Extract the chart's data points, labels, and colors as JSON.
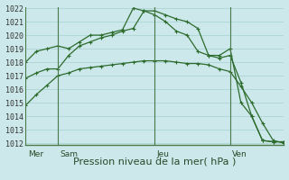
{
  "bg_color": "#cce8ea",
  "grid_color": "#aed4d6",
  "line_color": "#2d6b2d",
  "marker_color": "#2d6b2d",
  "xlabel": "Pression niveau de la mer( hPa )",
  "xlabel_fontsize": 8,
  "ymin": 1012,
  "ymax": 1022,
  "ytick_fontsize": 6,
  "day_labels": [
    "Mer",
    "Sam",
    "Jeu",
    "Ven"
  ],
  "day_positions": [
    0,
    3,
    12,
    19
  ],
  "vline_color": "#4a7a4a",
  "xmax": 24,
  "series1_x": [
    0,
    1,
    2,
    3,
    4,
    5,
    6,
    7,
    8,
    9,
    10,
    11,
    12,
    13,
    14,
    15,
    16,
    17,
    18,
    19,
    20,
    21,
    22,
    23,
    24
  ],
  "series1_y": [
    1014.8,
    1015.6,
    1016.3,
    1017.0,
    1017.2,
    1017.5,
    1017.6,
    1017.7,
    1017.8,
    1017.9,
    1018.0,
    1018.1,
    1018.1,
    1018.1,
    1018.0,
    1017.9,
    1017.9,
    1017.8,
    1017.5,
    1017.3,
    1016.2,
    1015.0,
    1013.5,
    1012.2,
    1012.0
  ],
  "series2_x": [
    0,
    1,
    2,
    3,
    4,
    5,
    6,
    7,
    8,
    9,
    10,
    11,
    12,
    13,
    14,
    15,
    16,
    17,
    18,
    19,
    20,
    21,
    22,
    23,
    24
  ],
  "series2_y": [
    1016.8,
    1017.2,
    1017.5,
    1017.5,
    1018.5,
    1019.2,
    1019.5,
    1019.8,
    1020.0,
    1020.3,
    1020.5,
    1021.8,
    1021.8,
    1021.5,
    1021.2,
    1021.0,
    1020.5,
    1018.5,
    1018.3,
    1018.5,
    1016.5,
    1014.0,
    1012.2,
    1012.1,
    1012.1
  ],
  "series3_x": [
    0,
    1,
    2,
    3,
    4,
    5,
    6,
    7,
    8,
    9,
    10,
    11,
    12,
    13,
    14,
    15,
    16,
    17,
    18,
    19,
    20,
    21,
    22,
    23,
    24
  ],
  "series3_y": [
    1018.0,
    1018.8,
    1019.0,
    1019.2,
    1019.0,
    1019.5,
    1020.0,
    1020.0,
    1020.2,
    1020.4,
    1022.0,
    1021.8,
    1021.5,
    1021.0,
    1020.3,
    1020.0,
    1018.8,
    1018.5,
    1018.5,
    1019.0,
    1015.0,
    1014.0,
    1012.2,
    1012.1,
    1012.1
  ]
}
